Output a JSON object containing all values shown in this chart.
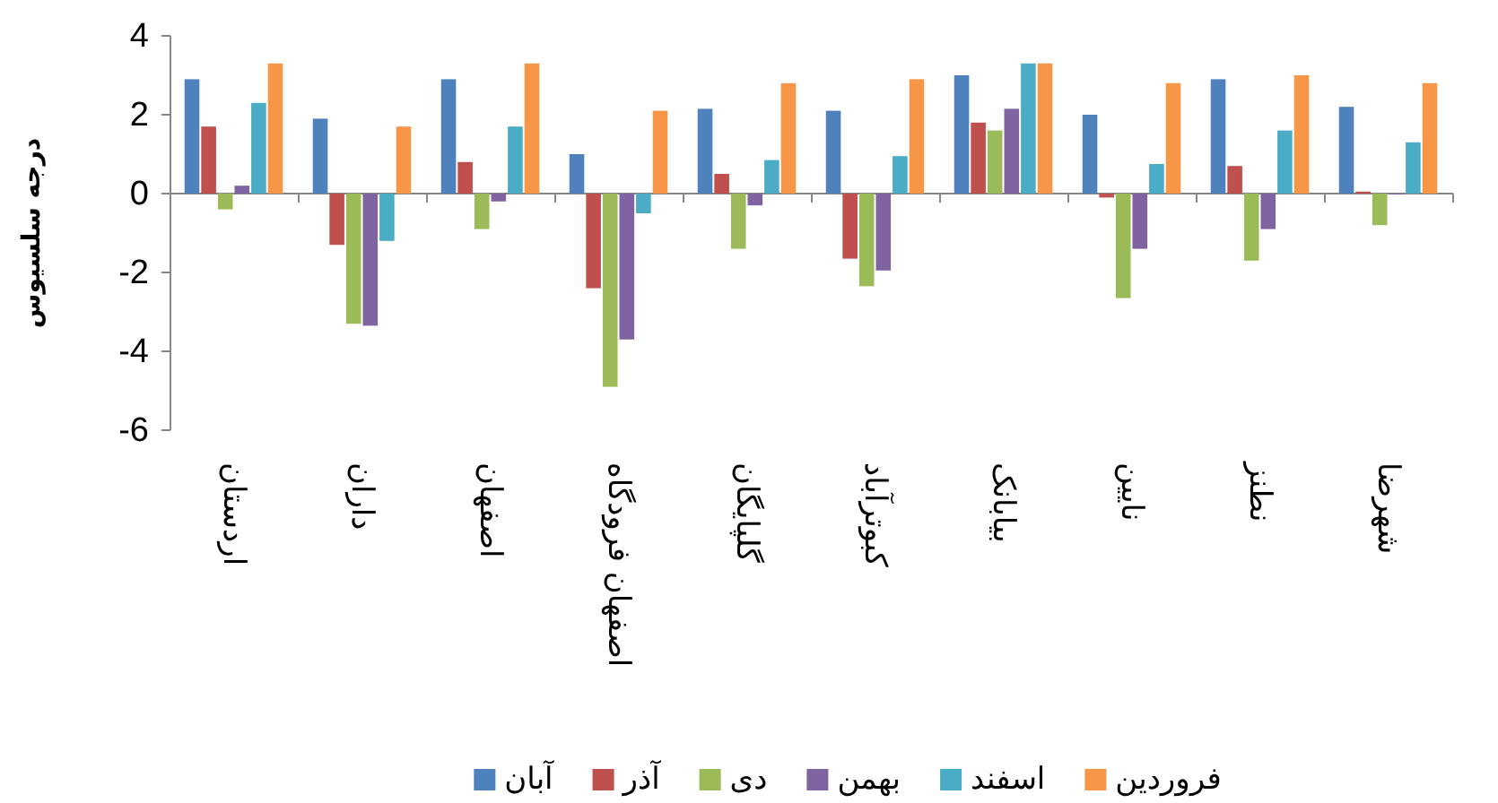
{
  "chart_data": {
    "type": "bar",
    "ylabel": "درجه سلسیوس",
    "categories": [
      "اردستان",
      "داران",
      "اصفهان",
      "اصفهان فرودگاه",
      "گلپایگان",
      "کبوترآباد",
      "بیابانک",
      "نایین",
      "نطنز",
      "شهرضا"
    ],
    "series": [
      {
        "name": "آبان",
        "color": "#4f81bd",
        "values": [
          2.9,
          1.9,
          2.9,
          1.0,
          2.15,
          2.1,
          3.0,
          2.0,
          2.9,
          2.2
        ]
      },
      {
        "name": "آذر",
        "color": "#c0504d",
        "values": [
          1.7,
          -1.3,
          0.8,
          -2.4,
          0.5,
          -1.65,
          1.8,
          -0.1,
          0.7,
          0.05
        ]
      },
      {
        "name": "دی",
        "color": "#9bbb59",
        "values": [
          -0.4,
          -3.3,
          -0.9,
          -4.9,
          -1.4,
          -2.35,
          1.6,
          -2.65,
          -1.7,
          -0.8
        ]
      },
      {
        "name": "بهمن",
        "color": "#8064a2",
        "values": [
          0.2,
          -3.35,
          -0.2,
          -3.7,
          -0.3,
          -1.95,
          2.15,
          -1.4,
          -0.9,
          0.0
        ]
      },
      {
        "name": "اسفند",
        "color": "#4bacc6",
        "values": [
          2.3,
          -1.2,
          1.7,
          -0.5,
          0.85,
          0.95,
          3.3,
          0.75,
          1.6,
          1.3
        ]
      },
      {
        "name": "فروردین",
        "color": "#f79646",
        "values": [
          3.3,
          1.7,
          3.3,
          2.1,
          2.8,
          2.9,
          3.3,
          2.8,
          3.0,
          2.8
        ]
      }
    ],
    "ylim": [
      -6,
      4
    ],
    "yticks": [
      -6,
      -4,
      -2,
      0,
      2,
      4
    ],
    "legend": "bottom"
  }
}
